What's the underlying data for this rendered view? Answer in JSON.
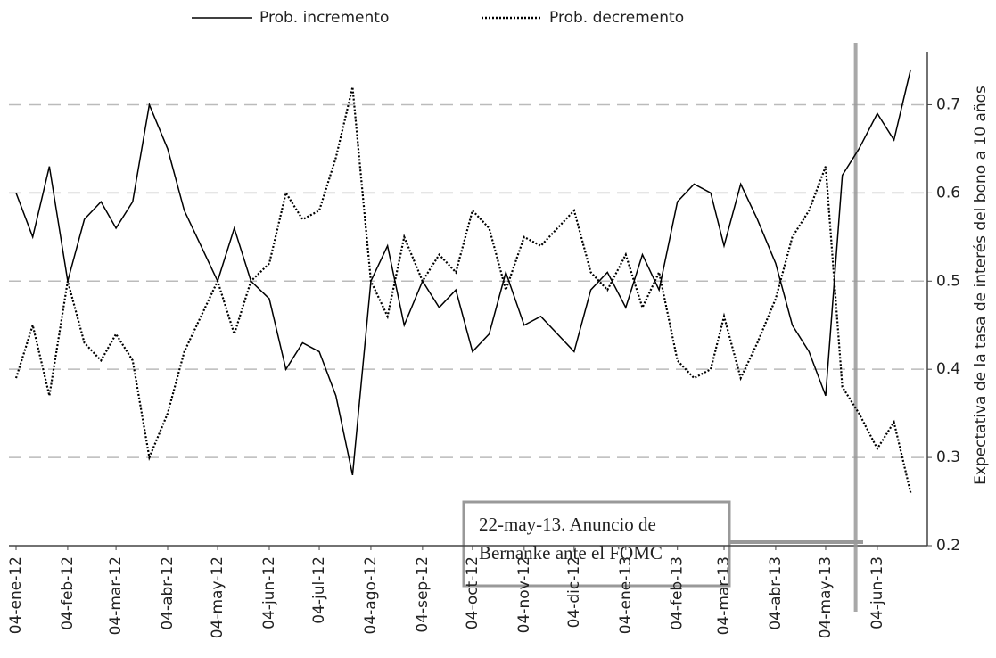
{
  "chart_data": {
    "type": "line",
    "x": [
      "2012-01-04",
      "2012-01-14",
      "2012-01-24",
      "2012-02-04",
      "2012-02-14",
      "2012-02-24",
      "2012-03-04",
      "2012-03-14",
      "2012-03-24",
      "2012-04-04",
      "2012-04-14",
      "2012-04-24",
      "2012-05-04",
      "2012-05-14",
      "2012-05-24",
      "2012-06-04",
      "2012-06-14",
      "2012-06-24",
      "2012-07-04",
      "2012-07-14",
      "2012-07-24",
      "2012-08-04",
      "2012-08-14",
      "2012-08-24",
      "2012-09-04",
      "2012-09-14",
      "2012-09-24",
      "2012-10-04",
      "2012-10-14",
      "2012-10-24",
      "2012-11-04",
      "2012-11-14",
      "2012-11-24",
      "2012-12-04",
      "2012-12-14",
      "2012-12-24",
      "2013-01-04",
      "2013-01-14",
      "2013-01-24",
      "2013-02-04",
      "2013-02-14",
      "2013-02-24",
      "2013-03-04",
      "2013-03-14",
      "2013-03-24",
      "2013-04-04",
      "2013-04-14",
      "2013-04-24",
      "2013-05-04",
      "2013-05-14",
      "2013-05-24",
      "2013-06-04",
      "2013-06-14",
      "2013-06-24"
    ],
    "series": [
      {
        "name": "Prob. incremento",
        "color": "#000000",
        "style": "solid",
        "values": [
          0.6,
          0.55,
          0.63,
          0.5,
          0.57,
          0.59,
          0.56,
          0.59,
          0.7,
          0.65,
          0.58,
          0.54,
          0.5,
          0.56,
          0.5,
          0.48,
          0.4,
          0.43,
          0.42,
          0.37,
          0.28,
          0.5,
          0.54,
          0.45,
          0.5,
          0.47,
          0.49,
          0.42,
          0.44,
          0.51,
          0.45,
          0.46,
          0.44,
          0.42,
          0.49,
          0.51,
          0.47,
          0.53,
          0.49,
          0.59,
          0.61,
          0.6,
          0.54,
          0.61,
          0.57,
          0.52,
          0.45,
          0.42,
          0.37,
          0.62,
          0.65,
          0.69,
          0.66,
          0.74
        ]
      },
      {
        "name": "Prob. decremento",
        "color": "#000000",
        "style": "dotted",
        "values": [
          0.39,
          0.45,
          0.37,
          0.5,
          0.43,
          0.41,
          0.44,
          0.41,
          0.3,
          0.35,
          0.42,
          0.46,
          0.5,
          0.44,
          0.5,
          0.52,
          0.6,
          0.57,
          0.58,
          0.64,
          0.72,
          0.5,
          0.46,
          0.55,
          0.5,
          0.53,
          0.51,
          0.58,
          0.56,
          0.49,
          0.55,
          0.54,
          0.56,
          0.58,
          0.51,
          0.49,
          0.53,
          0.47,
          0.51,
          0.41,
          0.39,
          0.4,
          0.46,
          0.39,
          0.43,
          0.48,
          0.55,
          0.58,
          0.63,
          0.38,
          0.35,
          0.31,
          0.34,
          0.26
        ]
      }
    ],
    "xlim": [
      "2012-01-04",
      "2013-06-26"
    ],
    "xticks": [
      {
        "value": "2012-01-04",
        "label": "04-ene-12"
      },
      {
        "value": "2012-02-04",
        "label": "04-feb-12"
      },
      {
        "value": "2012-03-04",
        "label": "04-mar-12"
      },
      {
        "value": "2012-04-04",
        "label": "04-abr-12"
      },
      {
        "value": "2012-05-04",
        "label": "04-may-12"
      },
      {
        "value": "2012-06-04",
        "label": "04-jun-12"
      },
      {
        "value": "2012-07-04",
        "label": "04-jul-12"
      },
      {
        "value": "2012-08-04",
        "label": "04-ago-12"
      },
      {
        "value": "2012-09-04",
        "label": "04-sep-12"
      },
      {
        "value": "2012-10-04",
        "label": "04-oct-12"
      },
      {
        "value": "2012-11-04",
        "label": "04-nov-12"
      },
      {
        "value": "2012-12-04",
        "label": "04-dic-12"
      },
      {
        "value": "2013-01-04",
        "label": "04-ene-13"
      },
      {
        "value": "2013-02-04",
        "label": "04-feb-13"
      },
      {
        "value": "2013-03-04",
        "label": "04-mar-13"
      },
      {
        "value": "2013-04-04",
        "label": "04-abr-13"
      },
      {
        "value": "2013-05-04",
        "label": "04-may-13"
      },
      {
        "value": "2013-06-04",
        "label": "04-jun-13"
      }
    ],
    "ylim": [
      0.2,
      0.75
    ],
    "yticks": [
      0.2,
      0.3,
      0.4,
      0.5,
      0.6,
      0.7
    ],
    "y_label": "Expectativa de la tasa de interés del bono a 10 años",
    "grid": true,
    "legend": "top",
    "annotation": {
      "x": "2013-05-22",
      "lines": [
        "22-may-13. Anuncio de",
        "Bernanke ante el FOMC"
      ]
    }
  }
}
